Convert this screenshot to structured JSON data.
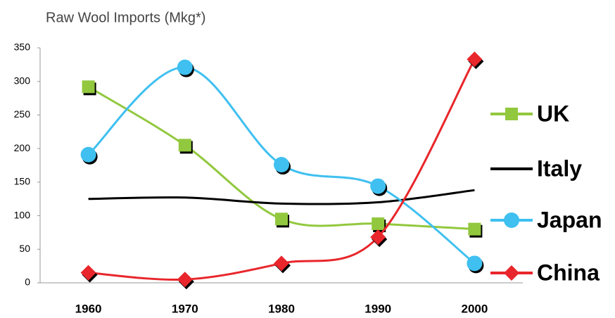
{
  "chart_data": {
    "type": "line",
    "title": "Raw Wool Imports (Mkg*)",
    "categories": [
      "1960",
      "1970",
      "1980",
      "1990",
      "2000"
    ],
    "series": [
      {
        "name": "UK",
        "color": "#92c83e",
        "marker": "square",
        "values": [
          292,
          205,
          95,
          88,
          80
        ]
      },
      {
        "name": "Italy",
        "color": "#000000",
        "marker": "none",
        "values": [
          125,
          127,
          118,
          120,
          138
        ]
      },
      {
        "name": "Japan",
        "color": "#3fc0f0",
        "marker": "circle",
        "values": [
          191,
          321,
          176,
          144,
          29
        ]
      },
      {
        "name": "China",
        "color": "#e8262b",
        "marker": "diamond",
        "values": [
          15,
          5,
          29,
          68,
          333
        ]
      }
    ],
    "ylim": [
      0,
      350
    ],
    "yticks": [
      0,
      50,
      100,
      150,
      200,
      250,
      300,
      350
    ],
    "smooth": true,
    "legend": "right"
  }
}
